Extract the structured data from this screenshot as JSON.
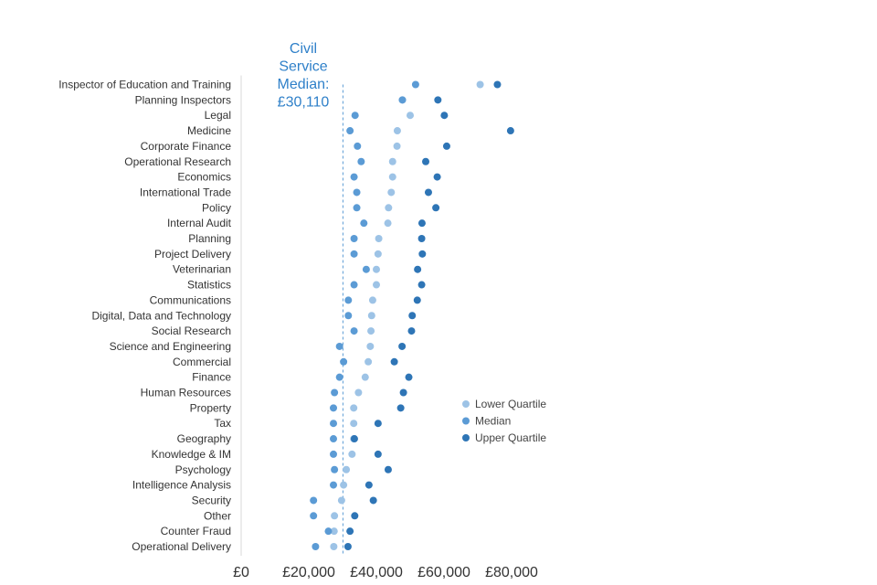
{
  "chart_data": {
    "type": "scatter",
    "orientation": "horizontal",
    "title": "",
    "xlabel": "",
    "ylabel": "",
    "xlim": [
      0,
      80000
    ],
    "x_ticks": [
      0,
      20000,
      40000,
      60000,
      80000
    ],
    "x_tick_labels": [
      "£0",
      "£20,000",
      "£40,000",
      "£60,000",
      "£80,000"
    ],
    "grid": false,
    "legend_position": "right",
    "categories": [
      "Inspector of Education and Training",
      "Planning Inspectors",
      "Legal",
      "Medicine",
      "Corporate Finance",
      "Operational Research",
      "Economics",
      "International Trade",
      "Policy",
      "Internal Audit",
      "Planning",
      "Project Delivery",
      "Veterinarian",
      "Statistics",
      "Communications",
      "Digital, Data and Technology",
      "Social Research",
      "Science and Engineering",
      "Commercial",
      "Finance",
      "Human Resources",
      "Property",
      "Tax",
      "Geography",
      "Knowledge & IM",
      "Psychology",
      "Intelligence Analysis",
      "Security",
      "Other",
      "Counter Fraud",
      "Operational Delivery"
    ],
    "series": [
      {
        "name": "Lower Quartile",
        "color": "#9dc3e6",
        "values": [
          70700,
          47700,
          50000,
          46200,
          46100,
          44800,
          44800,
          44400,
          43600,
          43400,
          40700,
          40500,
          40000,
          40000,
          38900,
          38600,
          38400,
          38200,
          37600,
          36700,
          34700,
          33300,
          33300,
          33300,
          32800,
          31100,
          30300,
          29700,
          27600,
          27500,
          27400
        ]
      },
      {
        "name": "Median",
        "color": "#5b9bd5",
        "values": [
          51600,
          47700,
          33700,
          32200,
          34400,
          35500,
          33400,
          34200,
          34200,
          36300,
          33400,
          33400,
          37000,
          33400,
          31700,
          31700,
          33400,
          29100,
          30300,
          29100,
          27600,
          27300,
          27300,
          27300,
          27300,
          27600,
          27300,
          21400,
          21400,
          25800,
          22000
        ]
      },
      {
        "name": "Upper Quartile",
        "color": "#2e75b6",
        "values": [
          75800,
          58200,
          60100,
          79700,
          60800,
          54600,
          58000,
          55400,
          57600,
          53500,
          53400,
          53600,
          52200,
          53400,
          52100,
          50600,
          50400,
          47600,
          45300,
          49600,
          48000,
          47200,
          40500,
          33500,
          40500,
          43500,
          37800,
          39100,
          33600,
          32200,
          31600
        ]
      }
    ],
    "reference_line": {
      "value": 30110,
      "color": "#5b9bd5",
      "label_lines": [
        "Civil",
        "Service",
        "Median:",
        "£30,110"
      ]
    }
  }
}
